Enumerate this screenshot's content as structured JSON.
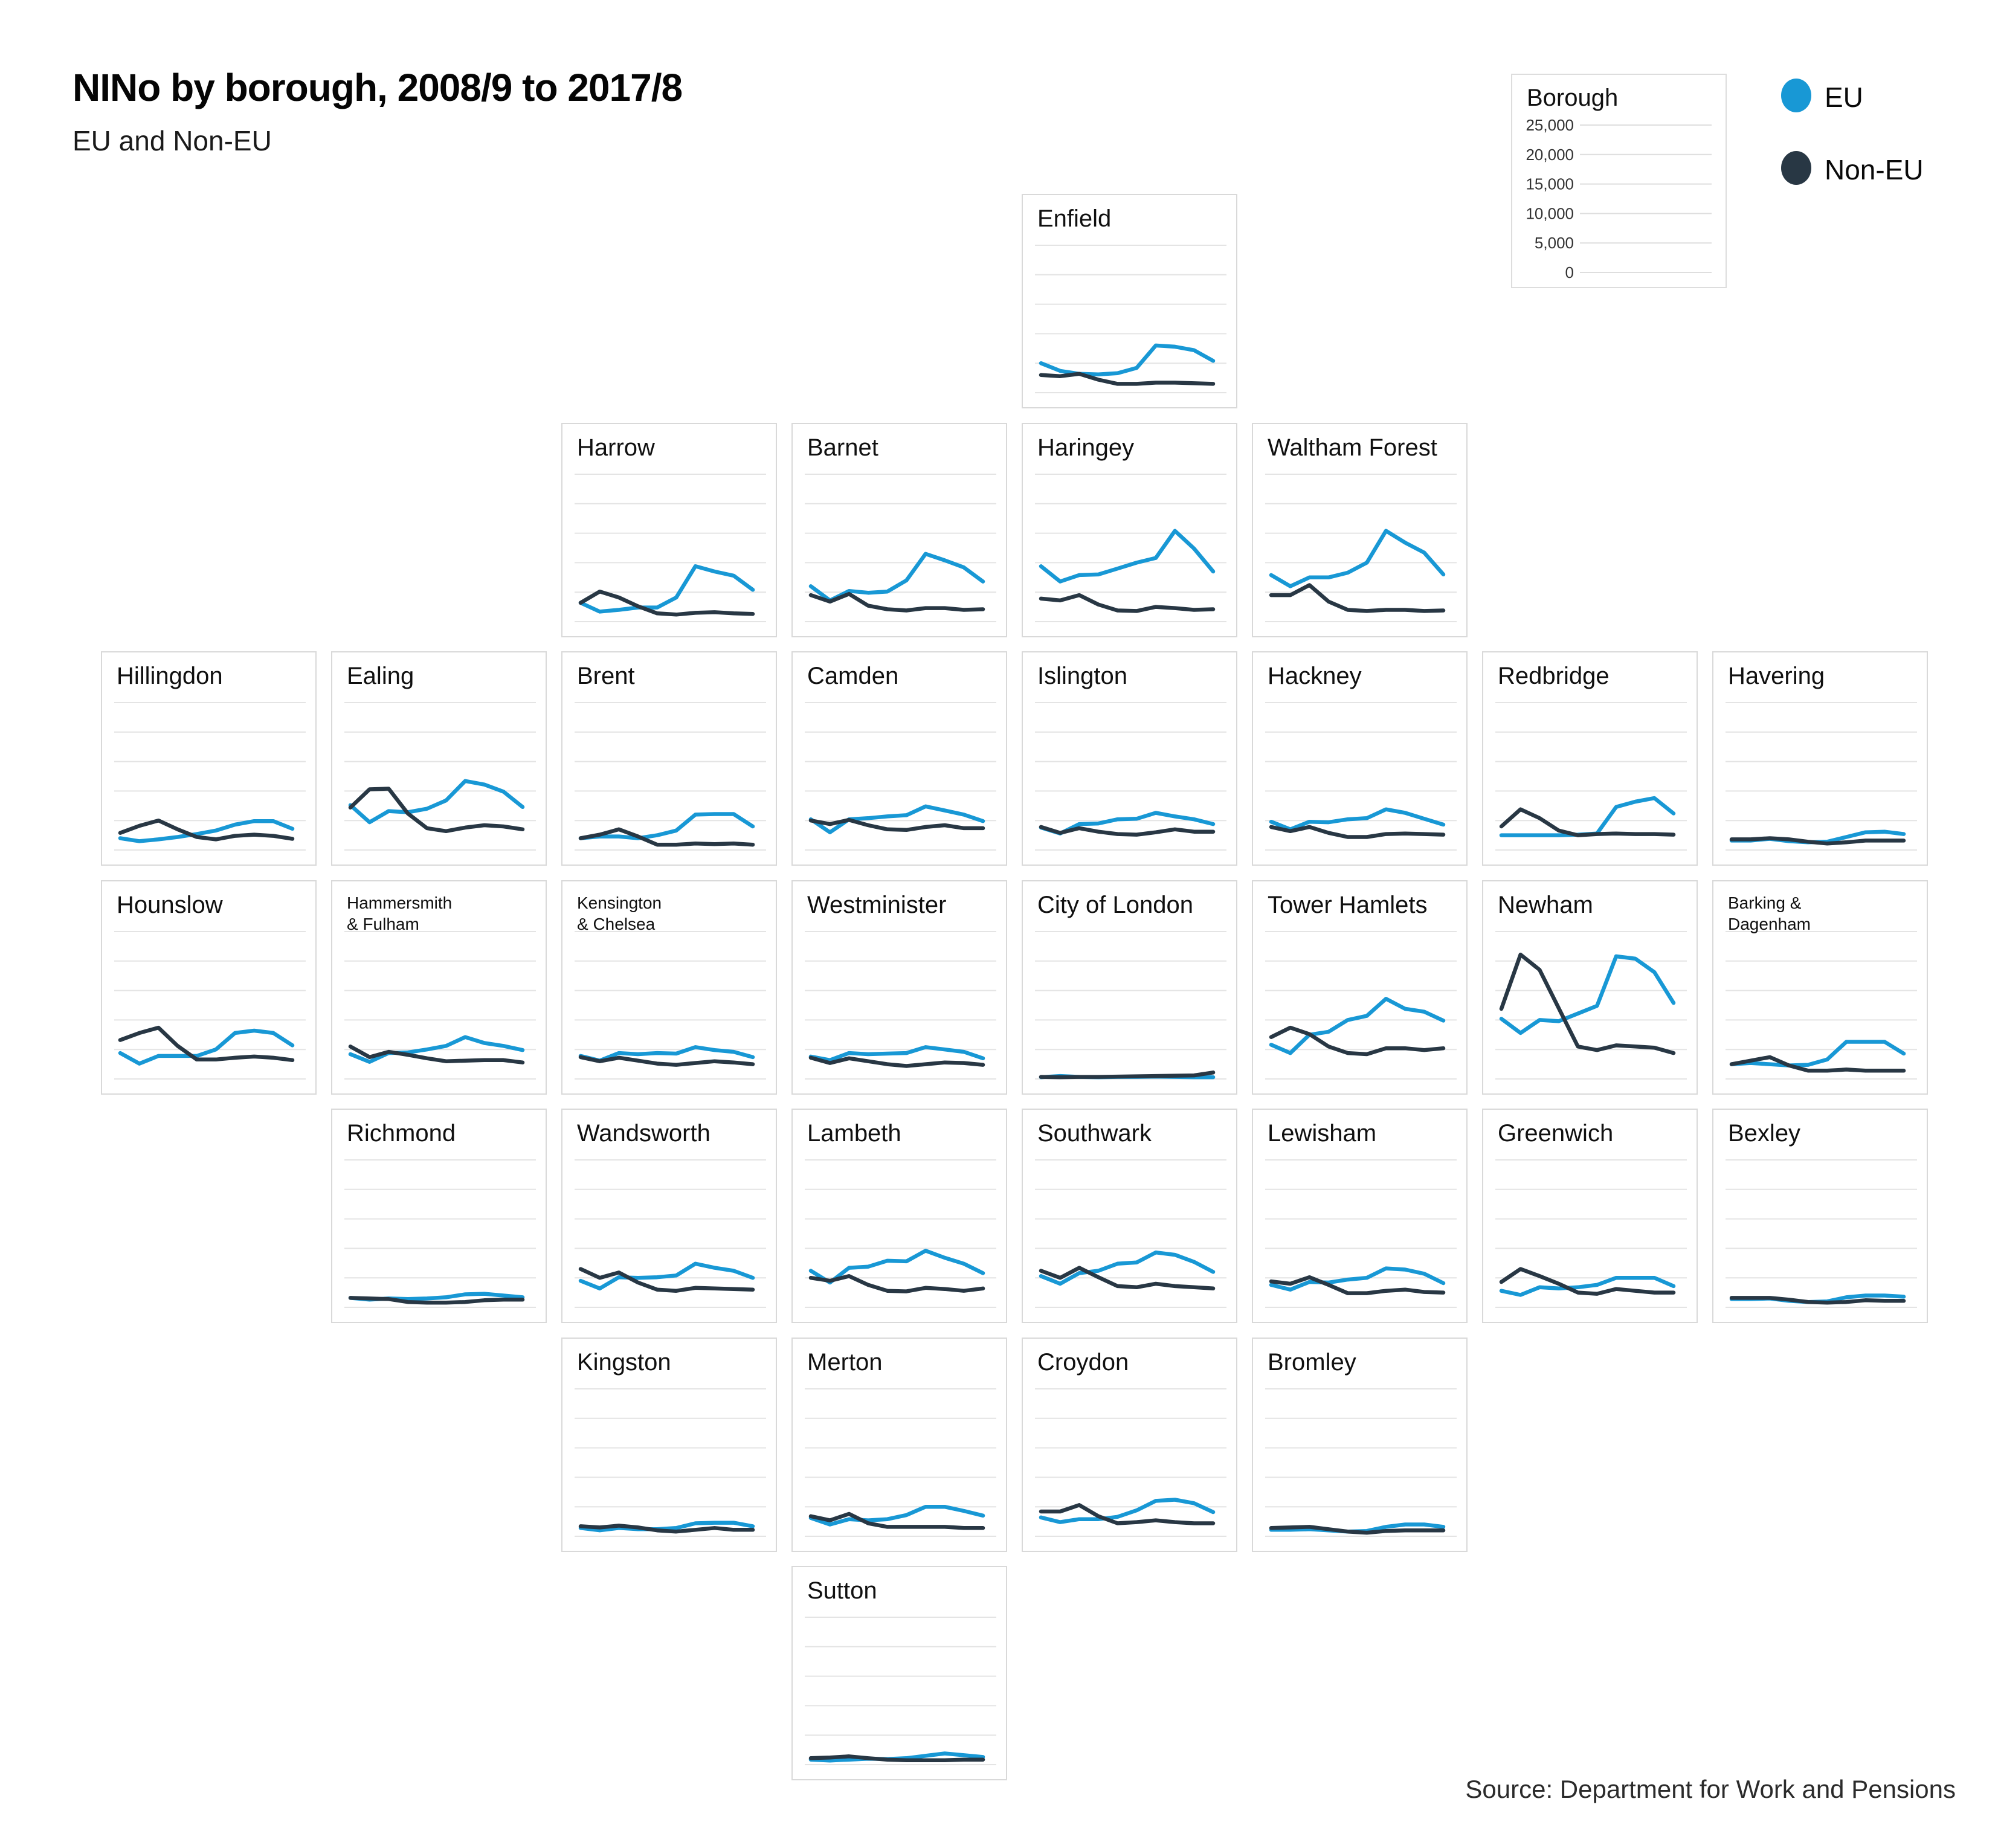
{
  "header": {
    "title": "NINo by borough, 2008/9 to 2017/8",
    "subtitle": "EU and Non-EU"
  },
  "legend": {
    "key_title": "Borough",
    "axis_ticks": [
      "25,000",
      "20,000",
      "15,000",
      "10,000",
      "5,000",
      "0"
    ],
    "series": [
      {
        "label": "EU",
        "color": "#1898d5"
      },
      {
        "label": "Non-EU",
        "color": "#283744"
      }
    ]
  },
  "source": "Source: Department for Work and Pensions",
  "chart_data": {
    "type": "line",
    "title": "NINo by borough, 2008/9 to 2017/8",
    "subtitle": "EU and Non-EU",
    "x_range": [
      "2008/9",
      "2017/8"
    ],
    "points_per_series": 10,
    "ylim": [
      0,
      25000
    ],
    "yticks": [
      0,
      5000,
      10000,
      15000,
      20000,
      25000
    ],
    "grid": true,
    "series_names": [
      "EU",
      "Non-EU"
    ],
    "colors": {
      "eu": "#1898d5",
      "non_eu": "#283744",
      "gridline": "#e4e4e4"
    },
    "boroughs": [
      {
        "name": "Enfield",
        "title_lines": [
          "Enfield"
        ],
        "col": 5,
        "row": 1,
        "eu": [
          5000,
          3700,
          3200,
          3100,
          3300,
          4200,
          8000,
          7800,
          7200,
          5400
        ],
        "non_eu": [
          3000,
          2800,
          3200,
          2200,
          1500,
          1500,
          1700,
          1700,
          1600,
          1500
        ]
      },
      {
        "name": "Harrow",
        "title_lines": [
          "Harrow"
        ],
        "col": 3,
        "row": 2,
        "eu": [
          3200,
          1700,
          2000,
          2400,
          2400,
          4100,
          9400,
          8500,
          7800,
          5400
        ],
        "non_eu": [
          3200,
          5100,
          4100,
          2600,
          1400,
          1200,
          1500,
          1600,
          1400,
          1300
        ]
      },
      {
        "name": "Barnet",
        "title_lines": [
          "Barnet"
        ],
        "col": 4,
        "row": 2,
        "eu": [
          6000,
          3600,
          5200,
          4900,
          5100,
          7000,
          11500,
          10400,
          9200,
          6800
        ],
        "non_eu": [
          4500,
          3400,
          4700,
          2700,
          2100,
          1900,
          2300,
          2300,
          2000,
          2100
        ]
      },
      {
        "name": "Haringey",
        "title_lines": [
          "Haringey"
        ],
        "col": 5,
        "row": 2,
        "eu": [
          9400,
          6800,
          7900,
          8000,
          9000,
          10000,
          10800,
          15400,
          12400,
          8500
        ],
        "non_eu": [
          3900,
          3600,
          4500,
          2900,
          1900,
          1800,
          2500,
          2300,
          2000,
          2100
        ]
      },
      {
        "name": "Waltham Forest",
        "title_lines": [
          "Waltham Forest"
        ],
        "col": 6,
        "row": 2,
        "eu": [
          7900,
          6000,
          7500,
          7500,
          8300,
          10000,
          15400,
          13400,
          11700,
          8000
        ],
        "non_eu": [
          4500,
          4500,
          6200,
          3400,
          2000,
          1800,
          2000,
          2000,
          1800,
          1900
        ]
      },
      {
        "name": "Hillingdon",
        "title_lines": [
          "Hillingdon"
        ],
        "col": 1,
        "row": 3,
        "eu": [
          2000,
          1500,
          1800,
          2200,
          2700,
          3300,
          4300,
          4900,
          4900,
          3600
        ],
        "non_eu": [
          2900,
          4100,
          5000,
          3500,
          2200,
          1800,
          2400,
          2600,
          2400,
          1900
        ]
      },
      {
        "name": "Ealing",
        "title_lines": [
          "Ealing"
        ],
        "col": 2,
        "row": 3,
        "eu": [
          7600,
          4700,
          6600,
          6400,
          7000,
          8400,
          11700,
          11100,
          9900,
          7300
        ],
        "non_eu": [
          7200,
          10300,
          10400,
          6200,
          3700,
          3200,
          3800,
          4200,
          4000,
          3500
        ]
      },
      {
        "name": "Brent",
        "title_lines": [
          "Brent"
        ],
        "col": 3,
        "row": 3,
        "eu": [
          2000,
          2300,
          2300,
          2000,
          2500,
          3300,
          6000,
          6100,
          6100,
          4000
        ],
        "non_eu": [
          2000,
          2600,
          3500,
          2300,
          900,
          900,
          1100,
          1000,
          1100,
          900
        ]
      },
      {
        "name": "Camden",
        "title_lines": [
          "Camden"
        ],
        "col": 4,
        "row": 3,
        "eu": [
          5200,
          3000,
          5200,
          5400,
          5700,
          5900,
          7400,
          6700,
          6000,
          4900
        ],
        "non_eu": [
          5000,
          4400,
          5100,
          4200,
          3500,
          3400,
          3900,
          4200,
          3700,
          3700
        ]
      },
      {
        "name": "Islington",
        "title_lines": [
          "Islington"
        ],
        "col": 5,
        "row": 3,
        "eu": [
          3800,
          2800,
          4400,
          4500,
          5200,
          5300,
          6300,
          5700,
          5200,
          4400
        ],
        "non_eu": [
          3900,
          2900,
          3700,
          3100,
          2700,
          2600,
          3000,
          3500,
          3100,
          3100
        ]
      },
      {
        "name": "Hackney",
        "title_lines": [
          "Hackney"
        ],
        "col": 6,
        "row": 3,
        "eu": [
          4800,
          3500,
          4800,
          4700,
          5200,
          5400,
          6900,
          6300,
          5300,
          4300
        ],
        "non_eu": [
          3900,
          3200,
          3900,
          2900,
          2200,
          2200,
          2700,
          2800,
          2700,
          2600
        ]
      },
      {
        "name": "Redbridge",
        "title_lines": [
          "Redbridge"
        ],
        "col": 7,
        "row": 3,
        "eu": [
          2500,
          2500,
          2500,
          2500,
          2600,
          2800,
          7300,
          8200,
          8800,
          6200
        ],
        "non_eu": [
          4000,
          6900,
          5400,
          3300,
          2500,
          2700,
          2800,
          2700,
          2700,
          2600
        ]
      },
      {
        "name": "Havering",
        "title_lines": [
          "Havering"
        ],
        "col": 8,
        "row": 3,
        "eu": [
          1600,
          1600,
          1900,
          1500,
          1300,
          1400,
          2200,
          3000,
          3100,
          2700
        ],
        "non_eu": [
          1800,
          1800,
          2000,
          1800,
          1400,
          1100,
          1300,
          1600,
          1600,
          1600
        ]
      },
      {
        "name": "Hounslow",
        "title_lines": [
          "Hounslow"
        ],
        "col": 1,
        "row": 4,
        "eu": [
          4400,
          2600,
          3900,
          3900,
          3900,
          5000,
          7800,
          8200,
          7800,
          5700
        ],
        "non_eu": [
          6600,
          7800,
          8700,
          5600,
          3300,
          3300,
          3600,
          3800,
          3600,
          3200
        ]
      },
      {
        "name": "Hammersmith & Fulham",
        "title_lines": [
          "Hammersmith",
          "& Fulham"
        ],
        "small_title": true,
        "col": 2,
        "row": 4,
        "eu": [
          4200,
          2900,
          4400,
          4500,
          5000,
          5600,
          7100,
          6100,
          5600,
          4900
        ],
        "non_eu": [
          5500,
          3700,
          4600,
          4100,
          3500,
          3000,
          3100,
          3200,
          3200,
          2800
        ]
      },
      {
        "name": "Kensington & Chelsea",
        "title_lines": [
          "Kensington",
          "& Chelsea"
        ],
        "small_title": true,
        "col": 3,
        "row": 4,
        "eu": [
          3900,
          3100,
          4400,
          4200,
          4400,
          4300,
          5400,
          4900,
          4600,
          3700
        ],
        "non_eu": [
          3700,
          3000,
          3600,
          3100,
          2600,
          2400,
          2700,
          3000,
          2800,
          2500
        ]
      },
      {
        "name": "Westminister",
        "title_lines": [
          "Westminister"
        ],
        "col": 4,
        "row": 4,
        "eu": [
          3800,
          3200,
          4400,
          4200,
          4300,
          4400,
          5400,
          5000,
          4600,
          3500
        ],
        "non_eu": [
          3600,
          2700,
          3500,
          3000,
          2500,
          2200,
          2500,
          2800,
          2700,
          2400
        ]
      },
      {
        "name": "City of London",
        "title_lines": [
          "City of London"
        ],
        "col": 5,
        "row": 4,
        "eu": [
          300,
          500,
          350,
          300,
          350,
          350,
          400,
          350,
          300,
          300
        ],
        "non_eu": [
          350,
          300,
          350,
          350,
          400,
          450,
          500,
          550,
          600,
          1100
        ]
      },
      {
        "name": "Tower Hamlets",
        "title_lines": [
          "Tower Hamlets"
        ],
        "col": 6,
        "row": 4,
        "eu": [
          5800,
          4400,
          7500,
          8000,
          10000,
          10700,
          13600,
          11900,
          11400,
          9900
        ],
        "non_eu": [
          7100,
          8700,
          7600,
          5500,
          4400,
          4200,
          5200,
          5200,
          4900,
          5200
        ]
      },
      {
        "name": "Newham",
        "title_lines": [
          "Newham"
        ],
        "col": 7,
        "row": 4,
        "eu": [
          10200,
          7800,
          10000,
          9800,
          11100,
          12400,
          20800,
          20400,
          18100,
          12900
        ],
        "non_eu": [
          11900,
          21100,
          18500,
          12000,
          5500,
          4900,
          5700,
          5500,
          5300,
          4400
        ]
      },
      {
        "name": "Barking & Dagenham",
        "title_lines": [
          "Barking &",
          "Dagenham"
        ],
        "small_title": true,
        "col": 8,
        "row": 4,
        "eu": [
          2500,
          2700,
          2500,
          2300,
          2400,
          3300,
          6300,
          6300,
          6300,
          4300
        ],
        "non_eu": [
          2500,
          3100,
          3700,
          2300,
          1400,
          1400,
          1600,
          1400,
          1400,
          1400
        ]
      },
      {
        "name": "Richmond",
        "title_lines": [
          "Richmond"
        ],
        "col": 2,
        "row": 5,
        "eu": [
          1600,
          1300,
          1500,
          1400,
          1500,
          1700,
          2200,
          2300,
          2000,
          1700
        ],
        "non_eu": [
          1600,
          1500,
          1400,
          900,
          800,
          800,
          900,
          1200,
          1300,
          1300
        ]
      },
      {
        "name": "Wandsworth",
        "title_lines": [
          "Wandsworth"
        ],
        "col": 3,
        "row": 5,
        "eu": [
          4500,
          3200,
          5100,
          5000,
          5100,
          5400,
          7400,
          6700,
          6200,
          5000
        ],
        "non_eu": [
          6500,
          5000,
          5900,
          4200,
          3000,
          2800,
          3300,
          3200,
          3100,
          3000
        ]
      },
      {
        "name": "Lambeth",
        "title_lines": [
          "Lambeth"
        ],
        "col": 4,
        "row": 5,
        "eu": [
          6200,
          4200,
          6700,
          6900,
          7900,
          7800,
          9600,
          8400,
          7400,
          5800
        ],
        "non_eu": [
          5000,
          4500,
          5300,
          3800,
          2800,
          2700,
          3300,
          3100,
          2800,
          3200
        ]
      },
      {
        "name": "Southwark",
        "title_lines": [
          "Southwark"
        ],
        "col": 5,
        "row": 5,
        "eu": [
          5300,
          4000,
          5800,
          6200,
          7400,
          7600,
          9300,
          8900,
          7700,
          6000
        ],
        "non_eu": [
          6200,
          5000,
          6700,
          5100,
          3600,
          3400,
          4000,
          3600,
          3400,
          3200
        ]
      },
      {
        "name": "Lewisham",
        "title_lines": [
          "Lewisham"
        ],
        "col": 6,
        "row": 5,
        "eu": [
          3800,
          3000,
          4300,
          4200,
          4700,
          5000,
          6600,
          6400,
          5700,
          4100
        ],
        "non_eu": [
          4400,
          4000,
          5100,
          3800,
          2400,
          2400,
          2800,
          3000,
          2600,
          2500
        ]
      },
      {
        "name": "Greenwich",
        "title_lines": [
          "Greenwich"
        ],
        "col": 7,
        "row": 5,
        "eu": [
          2800,
          2100,
          3400,
          3200,
          3400,
          3800,
          5000,
          5000,
          5000,
          3600
        ],
        "non_eu": [
          4300,
          6500,
          5300,
          4000,
          2500,
          2300,
          3100,
          2800,
          2500,
          2500
        ]
      },
      {
        "name": "Bexley",
        "title_lines": [
          "Bexley"
        ],
        "col": 8,
        "row": 5,
        "eu": [
          1400,
          1400,
          1500,
          1100,
          900,
          1000,
          1700,
          2000,
          2000,
          1800
        ],
        "non_eu": [
          1600,
          1600,
          1600,
          1300,
          900,
          800,
          900,
          1200,
          1100,
          1100
        ]
      },
      {
        "name": "Kingston",
        "title_lines": [
          "Kingston"
        ],
        "col": 3,
        "row": 6,
        "eu": [
          1400,
          1000,
          1400,
          1200,
          1200,
          1400,
          2200,
          2300,
          2300,
          1700
        ],
        "non_eu": [
          1700,
          1500,
          1800,
          1500,
          1000,
          800,
          1100,
          1400,
          1100,
          1100
        ]
      },
      {
        "name": "Merton",
        "title_lines": [
          "Merton"
        ],
        "col": 4,
        "row": 6,
        "eu": [
          3100,
          2000,
          2900,
          2700,
          2900,
          3600,
          5000,
          5000,
          4300,
          3500
        ],
        "non_eu": [
          3400,
          2700,
          3800,
          2200,
          1600,
          1600,
          1600,
          1600,
          1400,
          1400
        ]
      },
      {
        "name": "Croydon",
        "title_lines": [
          "Croydon"
        ],
        "col": 5,
        "row": 6,
        "eu": [
          3200,
          2400,
          2900,
          2900,
          3300,
          4400,
          6000,
          6200,
          5600,
          4100
        ],
        "non_eu": [
          4200,
          4200,
          5300,
          3400,
          2200,
          2400,
          2700,
          2400,
          2200,
          2200
        ]
      },
      {
        "name": "Bromley",
        "title_lines": [
          "Bromley"
        ],
        "col": 6,
        "row": 6,
        "eu": [
          1100,
          1100,
          1200,
          1000,
          800,
          900,
          1600,
          2000,
          2000,
          1600
        ],
        "non_eu": [
          1400,
          1500,
          1600,
          1200,
          800,
          600,
          900,
          1000,
          1000,
          1000
        ]
      },
      {
        "name": "Sutton",
        "title_lines": [
          "Sutton"
        ],
        "col": 4,
        "row": 7,
        "eu": [
          850,
          700,
          850,
          1000,
          950,
          1100,
          1500,
          1900,
          1600,
          1300
        ],
        "non_eu": [
          1100,
          1200,
          1400,
          1100,
          850,
          750,
          750,
          750,
          850,
          850
        ]
      }
    ]
  }
}
